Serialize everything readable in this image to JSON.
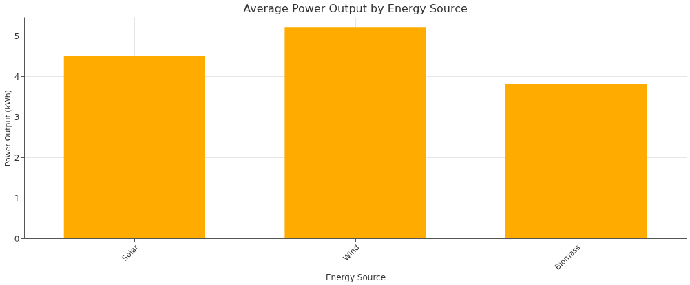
{
  "chart_data": {
    "type": "bar",
    "title": "Average Power Output by Energy Source",
    "xlabel": "Energy Source",
    "ylabel": "Power Output (kWh)",
    "categories": [
      "Solar",
      "Wind",
      "Biomass"
    ],
    "values": [
      4.5,
      5.2,
      3.8
    ],
    "color": "#ffab00",
    "ylim": [
      0,
      5.46
    ],
    "yticks": [
      0,
      1,
      2,
      3,
      4,
      5
    ],
    "grid": true
  }
}
